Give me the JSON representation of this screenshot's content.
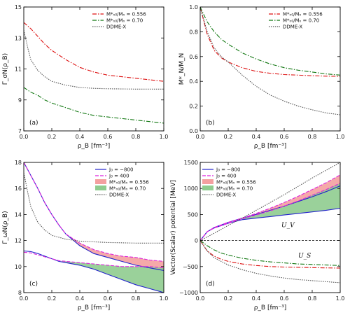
{
  "chart_data": [
    {
      "type": "line",
      "panel_label": "(a)",
      "ylabel": "Γ_σN(ρ_B)",
      "xlabel": "ρ_B [fm⁻³]",
      "xlim": [
        0,
        1
      ],
      "ylim": [
        7,
        15
      ],
      "xticks": [
        "0.0",
        "0.2",
        "0.4",
        "0.6",
        "0.8",
        "1.0"
      ],
      "yticks": [
        "7",
        "9",
        "11",
        "13",
        "15"
      ],
      "legend_position": "top-right",
      "series": [
        {
          "name": "M*_N0/M_N = 0.556",
          "color": "#dd1111",
          "dash": "6,2,1.5,2",
          "x": [
            0,
            0.05,
            0.1,
            0.15,
            0.2,
            0.3,
            0.4,
            0.5,
            0.6,
            0.7,
            0.8,
            0.9,
            1.0
          ],
          "y": [
            14.0,
            13.6,
            13.1,
            12.6,
            12.2,
            11.6,
            11.1,
            10.8,
            10.6,
            10.5,
            10.4,
            10.3,
            10.2
          ]
        },
        {
          "name": "M*_N0/M_N = 0.70",
          "color": "#117711",
          "dash": "6,2,1.5,2",
          "x": [
            0,
            0.05,
            0.1,
            0.15,
            0.2,
            0.3,
            0.4,
            0.5,
            0.6,
            0.7,
            0.8,
            0.9,
            1.0
          ],
          "y": [
            9.8,
            9.5,
            9.3,
            9.0,
            8.8,
            8.5,
            8.2,
            8.0,
            7.9,
            7.8,
            7.7,
            7.6,
            7.5
          ]
        },
        {
          "name": "DDME-X",
          "color": "#555555",
          "dash": "1.5,1.5",
          "x": [
            0,
            0.03,
            0.05,
            0.1,
            0.15,
            0.2,
            0.3,
            0.4,
            0.5,
            0.6,
            0.8,
            1.0
          ],
          "y": [
            13.5,
            12.3,
            11.6,
            10.9,
            10.5,
            10.2,
            9.95,
            9.8,
            9.75,
            9.72,
            9.7,
            9.7
          ]
        }
      ]
    },
    {
      "type": "line",
      "panel_label": "(b)",
      "ylabel": "M*_N/M_N",
      "xlabel": "ρ_B [fm⁻³]",
      "xlim": [
        0,
        1
      ],
      "ylim": [
        0,
        1
      ],
      "xticks": [
        "0.0",
        "0.2",
        "0.4",
        "0.6",
        "0.8",
        "1.0"
      ],
      "yticks": [
        "0.0",
        "0.2",
        "0.4",
        "0.6",
        "0.8",
        "1.0"
      ],
      "legend_position": "top-right",
      "series": [
        {
          "name": "M*_N0/M_N = 0.556",
          "color": "#dd1111",
          "dash": "6,2,1.5,2",
          "x": [
            0,
            0.05,
            0.1,
            0.15,
            0.2,
            0.3,
            0.4,
            0.5,
            0.6,
            0.7,
            0.8,
            0.9,
            1.0
          ],
          "y": [
            1.0,
            0.78,
            0.65,
            0.59,
            0.556,
            0.51,
            0.48,
            0.465,
            0.455,
            0.45,
            0.445,
            0.442,
            0.44
          ]
        },
        {
          "name": "M*_N0/M_N = 0.70",
          "color": "#117711",
          "dash": "6,2,1.5,2",
          "x": [
            0,
            0.05,
            0.1,
            0.15,
            0.2,
            0.3,
            0.4,
            0.5,
            0.6,
            0.7,
            0.8,
            0.9,
            1.0
          ],
          "y": [
            1.0,
            0.88,
            0.8,
            0.74,
            0.7,
            0.63,
            0.58,
            0.54,
            0.51,
            0.49,
            0.475,
            0.46,
            0.45
          ]
        },
        {
          "name": "DDME-X",
          "color": "#555555",
          "dash": "1.5,1.5",
          "x": [
            0,
            0.05,
            0.1,
            0.15,
            0.2,
            0.3,
            0.4,
            0.5,
            0.6,
            0.7,
            0.8,
            0.9,
            1.0
          ],
          "y": [
            1.0,
            0.8,
            0.67,
            0.6,
            0.556,
            0.45,
            0.36,
            0.29,
            0.24,
            0.2,
            0.17,
            0.145,
            0.13
          ]
        }
      ]
    },
    {
      "type": "line",
      "panel_label": "(c)",
      "ylabel": "Γ_ωN(ρ_B)",
      "xlabel": "ρ_B [fm⁻³]",
      "xlim": [
        0,
        1
      ],
      "ylim": [
        8,
        18
      ],
      "xticks": [
        "0.0",
        "0.2",
        "0.4",
        "0.6",
        "0.8",
        "1.0"
      ],
      "yticks": [
        "8",
        "10",
        "12",
        "14",
        "16",
        "18"
      ],
      "legend_position": "top-right",
      "bands": [
        {
          "name": "M*_N0/M_N = 0.556",
          "color": "#f4a0a0",
          "x": [
            0.3,
            0.4,
            0.5,
            0.6,
            0.7,
            0.8,
            0.9,
            1.0
          ],
          "lower": [
            12.5,
            11.6,
            11.0,
            10.7,
            10.4,
            10.1,
            9.9,
            9.7
          ],
          "upper": [
            12.5,
            11.8,
            11.3,
            11.0,
            10.8,
            10.7,
            10.5,
            10.4
          ]
        },
        {
          "name": "M*_N0/M_N = 0.70",
          "color": "#8fcc8f",
          "x": [
            0.25,
            0.3,
            0.4,
            0.5,
            0.6,
            0.7,
            0.8,
            0.9,
            1.0
          ],
          "lower": [
            10.4,
            10.3,
            10.1,
            9.8,
            9.4,
            9.0,
            8.6,
            8.3,
            8.0
          ],
          "upper": [
            10.4,
            10.4,
            10.3,
            10.2,
            10.1,
            10.0,
            10.0,
            10.0,
            9.9
          ]
        }
      ],
      "series": [
        {
          "name": "J0 = −800",
          "color": "#2222cc",
          "dash": "",
          "x": [
            0,
            0.05,
            0.1,
            0.15,
            0.2,
            0.25,
            0.3,
            0.4,
            0.5,
            0.6,
            0.7,
            0.8,
            0.9,
            1.0
          ],
          "y": [
            18.0,
            17.0,
            16.0,
            14.9,
            14.0,
            13.2,
            12.5,
            11.6,
            11.0,
            10.7,
            10.4,
            10.1,
            9.9,
            9.7
          ]
        },
        {
          "name": "J0 = −800 (lower family)",
          "color": "#2222cc",
          "dash": "",
          "x": [
            0,
            0.05,
            0.1,
            0.15,
            0.2,
            0.25,
            0.3,
            0.4,
            0.5,
            0.6,
            0.7,
            0.8,
            0.9,
            1.0
          ],
          "y": [
            11.2,
            11.15,
            11.0,
            10.8,
            10.6,
            10.4,
            10.3,
            10.1,
            9.8,
            9.4,
            9.0,
            8.6,
            8.3,
            8.0
          ]
        },
        {
          "name": "J0 = 400",
          "color": "#dd22dd",
          "dash": "5,2",
          "x": [
            0,
            0.05,
            0.1,
            0.15,
            0.2,
            0.25,
            0.3,
            0.4,
            0.5,
            0.6,
            0.7,
            0.8,
            0.9,
            1.0
          ],
          "y": [
            18.0,
            17.0,
            16.0,
            14.9,
            14.0,
            13.2,
            12.5,
            11.8,
            11.3,
            11.0,
            10.8,
            10.7,
            10.5,
            10.4
          ]
        },
        {
          "name": "J0 = 400 (lower family)",
          "color": "#dd22dd",
          "dash": "5,2",
          "x": [
            0,
            0.05,
            0.1,
            0.15,
            0.2,
            0.25,
            0.3,
            0.4,
            0.5,
            0.6,
            0.7,
            0.8,
            0.9,
            1.0
          ],
          "y": [
            11.1,
            11.05,
            10.9,
            10.75,
            10.6,
            10.45,
            10.4,
            10.3,
            10.2,
            10.1,
            10.0,
            10.0,
            10.0,
            9.9
          ]
        },
        {
          "name": "DDME-X",
          "color": "#555555",
          "dash": "1.5,1.5",
          "x": [
            0,
            0.03,
            0.05,
            0.1,
            0.15,
            0.2,
            0.3,
            0.4,
            0.5,
            0.6,
            0.8,
            1.0
          ],
          "y": [
            17.2,
            15.6,
            14.6,
            13.4,
            12.8,
            12.4,
            12.1,
            11.95,
            11.9,
            11.85,
            11.8,
            11.8
          ]
        }
      ]
    },
    {
      "type": "line",
      "panel_label": "(d)",
      "ylabel": "Vector(Scalar) potential [MeV]",
      "xlabel": "ρ_B [fm⁻³]",
      "xlim": [
        0,
        1
      ],
      "ylim": [
        -1000,
        1500
      ],
      "xticks": [
        "0.0",
        "0.2",
        "0.4",
        "0.6",
        "0.8",
        "1.0"
      ],
      "yticks": [
        "−1000",
        "−500",
        "0",
        "500",
        "1000",
        "1500"
      ],
      "legend_position": "top-left",
      "annotations": [
        {
          "text": "U_V",
          "x": 0.58,
          "y": 260
        },
        {
          "text": "U_S",
          "x": 0.7,
          "y": -330
        }
      ],
      "bands": [
        {
          "name": "M*_N0/M_N = 0.556",
          "color": "#f4a0a0",
          "x": [
            0.3,
            0.4,
            0.5,
            0.6,
            0.7,
            0.8,
            0.9,
            1.0
          ],
          "lower": [
            430,
            500,
            580,
            660,
            750,
            840,
            940,
            1050
          ],
          "upper": [
            430,
            520,
            620,
            730,
            850,
            980,
            1110,
            1260
          ]
        },
        {
          "name": "M*_N0/M_N = 0.70",
          "color": "#8fcc8f",
          "x": [
            0.3,
            0.4,
            0.5,
            0.6,
            0.7,
            0.8,
            0.9,
            1.0
          ],
          "lower": [
            400,
            430,
            460,
            490,
            520,
            550,
            580,
            620
          ],
          "upper": [
            420,
            490,
            570,
            660,
            760,
            870,
            980,
            1100
          ]
        }
      ],
      "series": [
        {
          "name": "J0 = −800",
          "color": "#2222cc",
          "dash": "",
          "x": [
            0,
            0.05,
            0.1,
            0.2,
            0.3,
            0.4,
            0.5,
            0.6,
            0.7,
            0.8,
            0.9,
            1.0
          ],
          "y": [
            0,
            170,
            240,
            330,
            400,
            430,
            460,
            490,
            520,
            550,
            580,
            620
          ]
        },
        {
          "name": "J0 = −800 (upper family)",
          "color": "#2222cc",
          "dash": "",
          "x": [
            0,
            0.05,
            0.1,
            0.2,
            0.3,
            0.4,
            0.5,
            0.6,
            0.7,
            0.8,
            0.9,
            1.0
          ],
          "y": [
            0,
            170,
            250,
            350,
            430,
            500,
            580,
            660,
            750,
            840,
            940,
            1050
          ]
        },
        {
          "name": "J0 = 400",
          "color": "#dd22dd",
          "dash": "5,2",
          "x": [
            0,
            0.05,
            0.1,
            0.2,
            0.3,
            0.4,
            0.5,
            0.6,
            0.7,
            0.8,
            0.9,
            1.0
          ],
          "y": [
            0,
            170,
            250,
            350,
            430,
            520,
            620,
            730,
            850,
            980,
            1110,
            1260
          ]
        },
        {
          "name": "J0 = 400 (lower family)",
          "color": "#dd22dd",
          "dash": "5,2",
          "x": [
            0,
            0.05,
            0.1,
            0.2,
            0.3,
            0.4,
            0.5,
            0.6,
            0.7,
            0.8,
            0.9,
            1.0
          ],
          "y": [
            0,
            170,
            240,
            330,
            420,
            490,
            570,
            660,
            760,
            870,
            980,
            1100
          ]
        },
        {
          "name": "DDME-X U_V",
          "color": "#555555",
          "dash": "1.5,1.5",
          "x": [
            0,
            0.1,
            0.2,
            0.3,
            0.4,
            0.5,
            0.6,
            0.7,
            0.8,
            0.9,
            1.0
          ],
          "y": [
            0,
            140,
            290,
            430,
            580,
            730,
            880,
            1040,
            1200,
            1350,
            1500
          ]
        },
        {
          "name": "0.556 U_S",
          "color": "#dd1111",
          "dash": "6,2,1.5,2",
          "x": [
            0,
            0.05,
            0.1,
            0.15,
            0.2,
            0.3,
            0.4,
            0.5,
            0.6,
            0.7,
            0.8,
            0.9,
            1.0
          ],
          "y": [
            0,
            -200,
            -300,
            -360,
            -400,
            -450,
            -480,
            -500,
            -510,
            -515,
            -520,
            -525,
            -530
          ]
        },
        {
          "name": "0.70 U_S",
          "color": "#117711",
          "dash": "6,2,1.5,2",
          "x": [
            0,
            0.05,
            0.1,
            0.15,
            0.2,
            0.3,
            0.4,
            0.5,
            0.6,
            0.7,
            0.8,
            0.9,
            1.0
          ],
          "y": [
            0,
            -100,
            -180,
            -240,
            -280,
            -340,
            -380,
            -410,
            -430,
            -450,
            -460,
            -470,
            -480
          ]
        },
        {
          "name": "DDME-X U_S",
          "color": "#555555",
          "dash": "1.5,1.5",
          "x": [
            0,
            0.05,
            0.1,
            0.2,
            0.3,
            0.4,
            0.5,
            0.6,
            0.7,
            0.8,
            0.9,
            1.0
          ],
          "y": [
            0,
            -200,
            -330,
            -470,
            -560,
            -630,
            -680,
            -720,
            -750,
            -770,
            -790,
            -810
          ]
        }
      ]
    }
  ],
  "legends": [
    [
      {
        "kind": "line",
        "color": "#dd1111",
        "dash": "6,2,1.5,2",
        "text": "M*ₙ₀/Mₙ = 0.556"
      },
      {
        "kind": "line",
        "color": "#117711",
        "dash": "6,2,1.5,2",
        "text": "M*ₙ₀/Mₙ = 0.70"
      },
      {
        "kind": "line",
        "color": "#555555",
        "dash": "1.5,1.5",
        "text": "DDME-X"
      }
    ],
    [
      {
        "kind": "line",
        "color": "#dd1111",
        "dash": "6,2,1.5,2",
        "text": "M*ₙ₀/Mₙ = 0.556"
      },
      {
        "kind": "line",
        "color": "#117711",
        "dash": "6,2,1.5,2",
        "text": "M*ₙ₀/Mₙ = 0.70"
      },
      {
        "kind": "line",
        "color": "#555555",
        "dash": "1.5,1.5",
        "text": "DDME-X"
      }
    ],
    [
      {
        "kind": "line",
        "color": "#2222cc",
        "dash": "",
        "text": "J₀ = −800"
      },
      {
        "kind": "line",
        "color": "#dd22dd",
        "dash": "5,2",
        "text": "J₀ = 400"
      },
      {
        "kind": "patch",
        "color": "#f4a0a0",
        "text": "M*ₙ₀/Mₙ = 0.556"
      },
      {
        "kind": "patch",
        "color": "#8fcc8f",
        "text": "M*ₙ₀/Mₙ = 0.70"
      },
      {
        "kind": "line",
        "color": "#555555",
        "dash": "1.5,1.5",
        "text": "DDME-X"
      }
    ],
    [
      {
        "kind": "line",
        "color": "#2222cc",
        "dash": "",
        "text": "J₀ = −800"
      },
      {
        "kind": "line",
        "color": "#dd22dd",
        "dash": "5,2",
        "text": "J₀ = 400"
      },
      {
        "kind": "patch",
        "color": "#f4a0a0",
        "text": "M*ₙ₀/Mₙ = 0.556"
      },
      {
        "kind": "patch",
        "color": "#8fcc8f",
        "text": "M*ₙ₀/Mₙ = 0.70"
      },
      {
        "kind": "line",
        "color": "#555555",
        "dash": "1.5,1.5",
        "text": "DDME-X"
      }
    ]
  ]
}
